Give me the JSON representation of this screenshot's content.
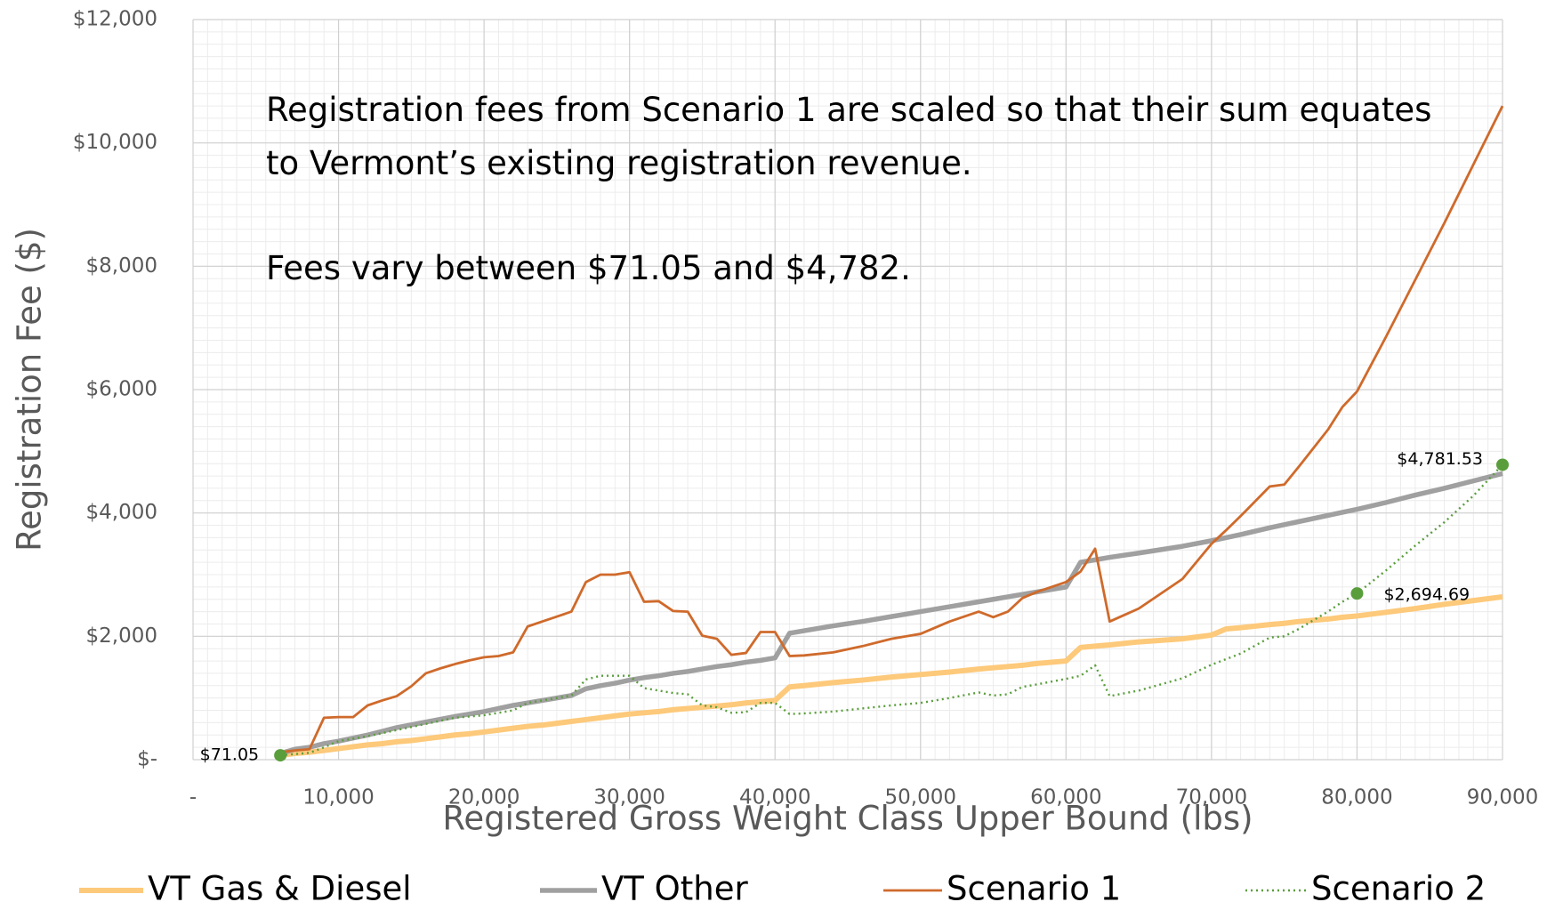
{
  "chart_data": {
    "type": "line",
    "xlabel": "Registered Gross Weight Class Upper Bound (lbs)",
    "ylabel": "Registration Fee ($)",
    "x": [
      6000,
      7000,
      8000,
      9000,
      10000,
      11000,
      12000,
      13000,
      14000,
      15000,
      16000,
      17000,
      18000,
      19000,
      20000,
      21000,
      22000,
      23000,
      24000,
      25000,
      26000,
      27000,
      28000,
      29000,
      30000,
      31000,
      32000,
      33000,
      34000,
      35000,
      36000,
      37000,
      38000,
      39000,
      40000,
      41000,
      42000,
      44000,
      46000,
      48000,
      50000,
      52000,
      54000,
      55000,
      56000,
      57000,
      58000,
      60000,
      61000,
      62000,
      63000,
      65000,
      68000,
      70000,
      71000,
      72000,
      74000,
      75000,
      76000,
      78000,
      79000,
      80000,
      82000,
      84000,
      86000,
      88000,
      90000
    ],
    "series": [
      {
        "name": "VT Gas & Diesel",
        "color": "#fdc97a",
        "values": [
          70,
          100,
          120,
          150,
          180,
          210,
          240,
          260,
          290,
          310,
          340,
          370,
          400,
          420,
          450,
          480,
          510,
          540,
          560,
          590,
          620,
          650,
          680,
          710,
          740,
          760,
          780,
          810,
          830,
          850,
          870,
          890,
          920,
          940,
          960,
          1180,
          1200,
          1250,
          1290,
          1340,
          1380,
          1420,
          1470,
          1490,
          1510,
          1530,
          1560,
          1600,
          1820,
          1840,
          1860,
          1910,
          1960,
          2020,
          2120,
          2140,
          2190,
          2210,
          2240,
          2280,
          2310,
          2330,
          2390,
          2450,
          2520,
          2580,
          2640
        ]
      },
      {
        "name": "VT Other",
        "color": "#a0a0a0",
        "values": [
          100,
          170,
          200,
          260,
          300,
          350,
          400,
          460,
          520,
          565,
          610,
          655,
          700,
          740,
          780,
          830,
          880,
          920,
          960,
          1000,
          1040,
          1150,
          1200,
          1240,
          1290,
          1330,
          1360,
          1400,
          1430,
          1470,
          1510,
          1540,
          1580,
          1610,
          1650,
          2050,
          2090,
          2170,
          2240,
          2320,
          2400,
          2480,
          2560,
          2600,
          2640,
          2680,
          2720,
          2800,
          3200,
          3240,
          3280,
          3350,
          3460,
          3550,
          3600,
          3650,
          3760,
          3810,
          3860,
          3960,
          4010,
          4060,
          4170,
          4290,
          4400,
          4520,
          4640
        ]
      },
      {
        "name": "Scenario 1",
        "color": "#cf6a2b",
        "values": [
          120,
          150,
          170,
          680,
          690,
          690,
          880,
          960,
          1030,
          1190,
          1400,
          1480,
          1550,
          1610,
          1660,
          1680,
          1740,
          2160,
          2240,
          2320,
          2400,
          2880,
          3000,
          3000,
          3040,
          2560,
          2570,
          2410,
          2400,
          2010,
          1960,
          1700,
          1730,
          2070,
          2070,
          1680,
          1690,
          1740,
          1840,
          1960,
          2040,
          2240,
          2400,
          2310,
          2400,
          2620,
          2720,
          2880,
          3050,
          3420,
          2240,
          2450,
          2930,
          3500,
          3720,
          3950,
          4430,
          4460,
          4750,
          5350,
          5720,
          5970,
          6860,
          7780,
          8700,
          9650,
          10600
        ]
      },
      {
        "name": "Scenario 2",
        "color": "#5a9e3c",
        "dashed": true,
        "values": [
          71.05,
          90,
          110,
          200,
          300,
          340,
          380,
          430,
          480,
          530,
          580,
          630,
          680,
          700,
          720,
          760,
          800,
          920,
          960,
          1000,
          1040,
          1300,
          1360,
          1360,
          1360,
          1160,
          1120,
          1080,
          1060,
          880,
          850,
          760,
          770,
          920,
          920,
          740,
          750,
          780,
          830,
          880,
          920,
          1000,
          1090,
          1040,
          1060,
          1180,
          1220,
          1310,
          1360,
          1530,
          1030,
          1120,
          1320,
          1540,
          1630,
          1720,
          1980,
          2000,
          2120,
          2400,
          2560,
          2694.69,
          3070,
          3470,
          3850,
          4280,
          4781.53
        ]
      }
    ],
    "annotations": [
      {
        "x": 6000,
        "y": 71.05,
        "label": "$71.05",
        "color": "#5a9e3c"
      },
      {
        "x": 80000,
        "y": 2694.69,
        "label": "$2,694.69",
        "color": "#5a9e3c"
      },
      {
        "x": 90000,
        "y": 4781.53,
        "label": "$4,781.53",
        "color": "#5a9e3c"
      }
    ],
    "note": [
      "Registration fees from Scenario 1 are scaled so that their sum equates",
      "to Vermont’s existing registration revenue.",
      "Fees vary between $71.05 and $4,782."
    ],
    "xlim": [
      0,
      90000
    ],
    "xticks": [
      {
        "value": 0,
        "label": "-"
      },
      {
        "value": 10000,
        "label": "10,000"
      },
      {
        "value": 20000,
        "label": "20,000"
      },
      {
        "value": 30000,
        "label": "30,000"
      },
      {
        "value": 40000,
        "label": "40,000"
      },
      {
        "value": 50000,
        "label": "50,000"
      },
      {
        "value": 60000,
        "label": "60,000"
      },
      {
        "value": 70000,
        "label": "70,000"
      },
      {
        "value": 80000,
        "label": "80,000"
      },
      {
        "value": 90000,
        "label": "90,000"
      }
    ],
    "ylim": [
      0,
      12000
    ],
    "yticks": [
      {
        "value": 0,
        "label": "$-"
      },
      {
        "value": 2000,
        "label": "$2,000"
      },
      {
        "value": 4000,
        "label": "$4,000"
      },
      {
        "value": 6000,
        "label": "$6,000"
      },
      {
        "value": 8000,
        "label": "$8,000"
      },
      {
        "value": 10000,
        "label": "$10,000"
      },
      {
        "value": 12000,
        "label": "$12,000"
      }
    ],
    "grid": true,
    "minor_grid": true,
    "legend": "bottom"
  }
}
